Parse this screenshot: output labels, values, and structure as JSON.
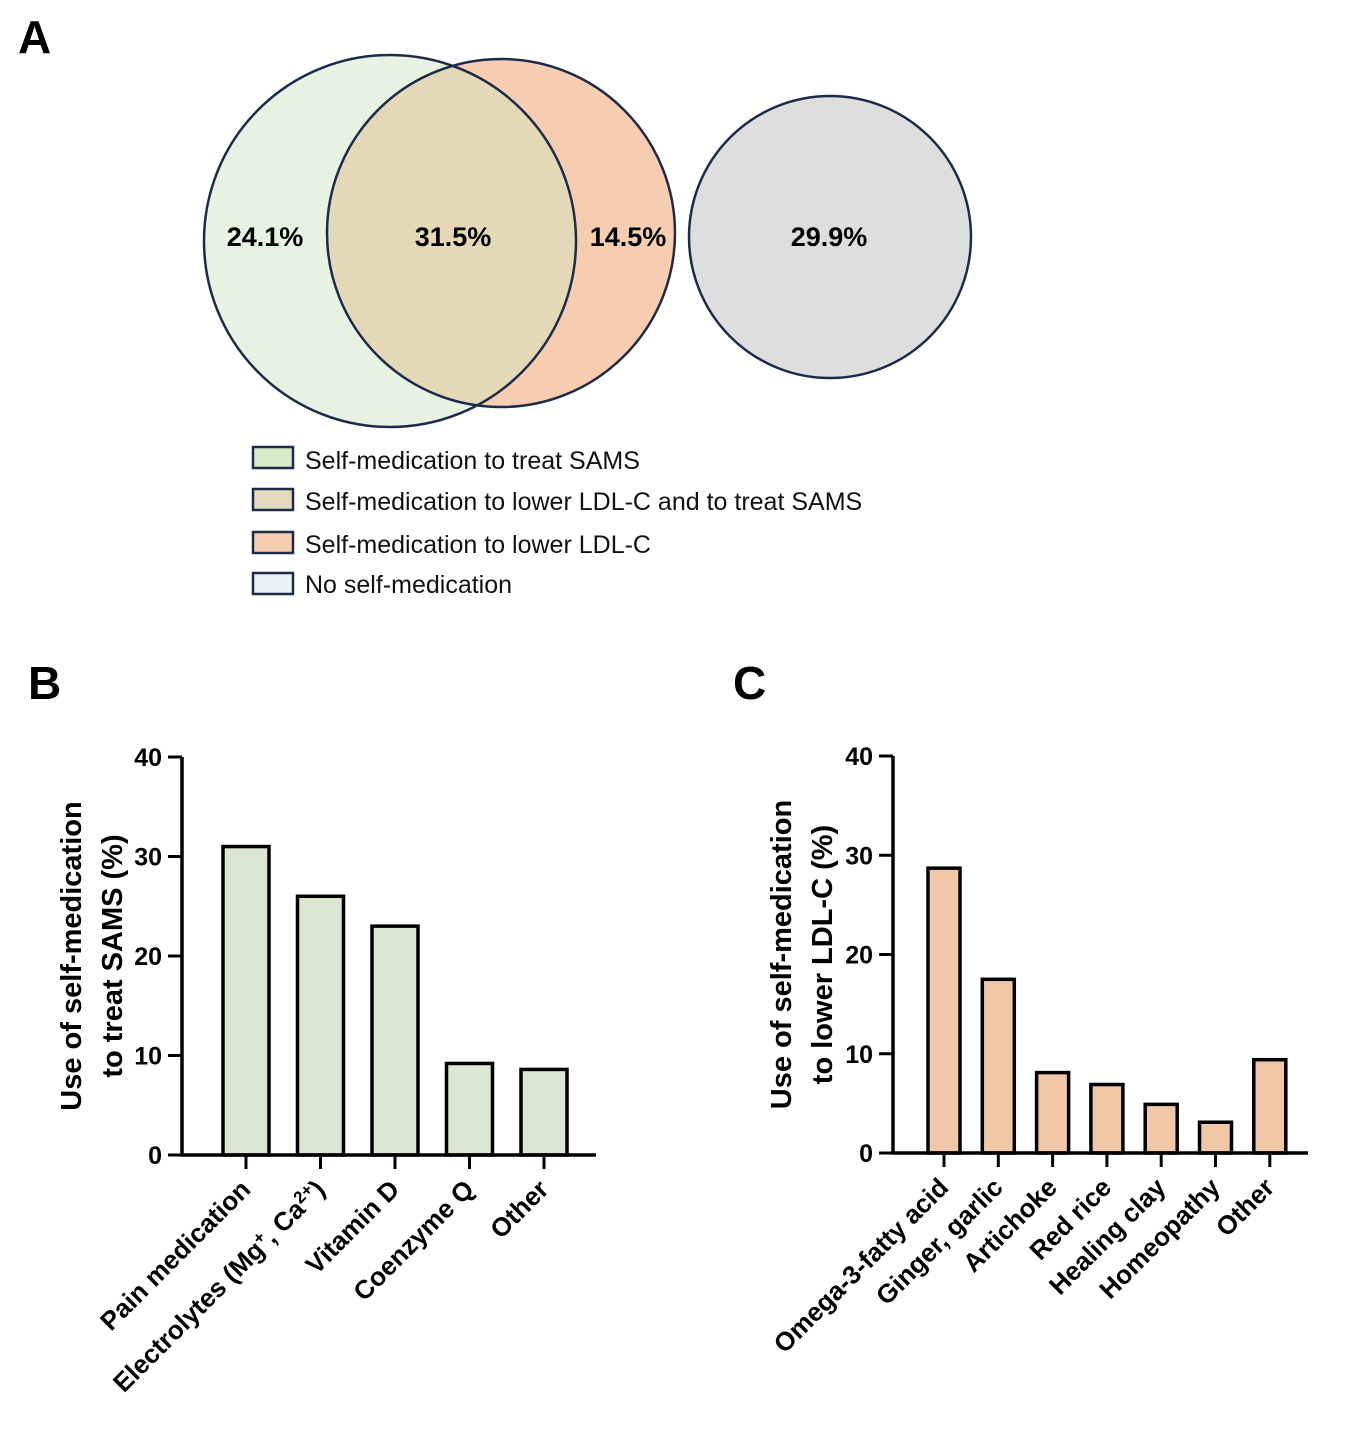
{
  "venn": {
    "panel_label": "A",
    "regions": {
      "sams_only": "24.1%",
      "both": "31.5%",
      "ldl_only": "14.5%",
      "none": "29.9%"
    },
    "colors": {
      "sams": "#e8f2e3",
      "both": "#e5d8b7",
      "ldl": "#f6cdb1",
      "none": "#dedede",
      "outline": "#1c2b4a"
    },
    "legend": [
      {
        "label": "Self-medication to treat SAMS",
        "color": "#d7ebc8"
      },
      {
        "label": "Self-medication to lower LDL-C and to treat SAMS",
        "color": "#e4dbbf"
      },
      {
        "label": "Self-medication to lower LDL-C",
        "color": "#f6cdb1"
      },
      {
        "label": "No self-medication",
        "color": "#eef1f4"
      }
    ]
  },
  "chart_data": [
    {
      "type": "bar",
      "panel_label": "B",
      "categories": [
        "Pain medication",
        "Electrolytes (Mg",
        "Vitamin D",
        "Coenzyme Q",
        "Other"
      ],
      "electrolytes_label": {
        "prefix": "Electrolytes (Mg",
        "sup1": "+",
        "middle": ", Ca",
        "sup2": "2+",
        "suffix": ")"
      },
      "values": [
        31,
        26,
        23,
        9.2,
        8.6
      ],
      "ylabel_line1": "Use of self-medication",
      "ylabel_line2": "to treat SAMS (%)",
      "ylim": [
        0,
        40
      ],
      "yticks": [
        0,
        10,
        20,
        30,
        40
      ],
      "bar_color": "#dbe7d0",
      "grid": false
    },
    {
      "type": "bar",
      "panel_label": "C",
      "categories": [
        "Omega-3-fatty acid",
        "Ginger, garlic",
        "Artichoke",
        "Red rice",
        "Healing clay",
        "Homeopathy",
        "Other"
      ],
      "values": [
        28.7,
        17.5,
        8.1,
        6.9,
        4.9,
        3.1,
        9.4
      ],
      "ylabel_line1": "Use of self-medication",
      "ylabel_line2": "to lower LDL-C (%)",
      "ylim": [
        0,
        40
      ],
      "yticks": [
        0,
        10,
        20,
        30,
        40
      ],
      "bar_color": "#f2c7a8",
      "grid": false
    }
  ]
}
